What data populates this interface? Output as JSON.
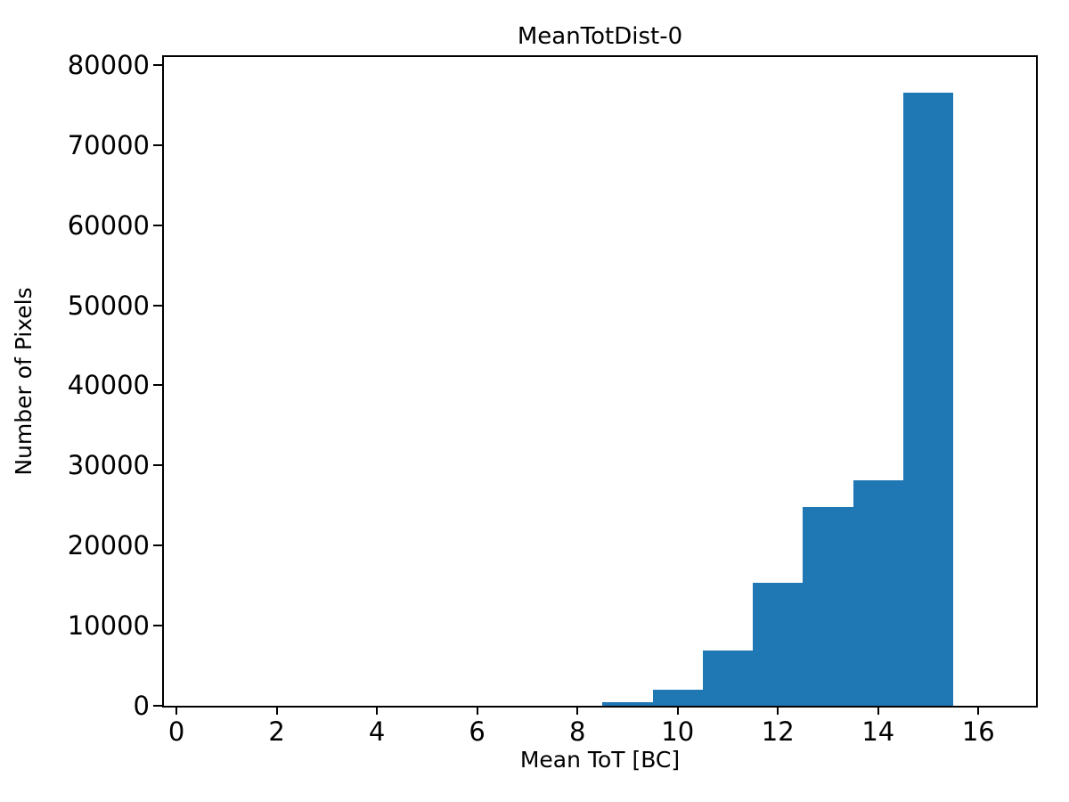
{
  "chart_data": {
    "type": "bar",
    "chart_kind": "histogram",
    "title": "MeanTotDist-0",
    "xlabel": "Mean ToT [BC]",
    "ylabel": "Number of Pixels",
    "bin_edges": [
      8.5,
      9.5,
      10.5,
      11.5,
      12.5,
      13.5,
      14.5,
      15.5
    ],
    "counts": [
      500,
      2000,
      6900,
      15400,
      24800,
      28200,
      76600
    ],
    "x_ticks": [
      0,
      2,
      4,
      6,
      8,
      10,
      12,
      14,
      16
    ],
    "y_ticks": [
      0,
      10000,
      20000,
      30000,
      40000,
      50000,
      60000,
      70000,
      80000
    ],
    "xlim": [
      -0.25,
      17.15
    ],
    "ylim": [
      0,
      81000
    ],
    "bar_color": "#1f77b4",
    "axis_color": "#000000",
    "text_color": "#000000",
    "background_color": "#ffffff",
    "grid": false,
    "legend_position": "none"
  }
}
